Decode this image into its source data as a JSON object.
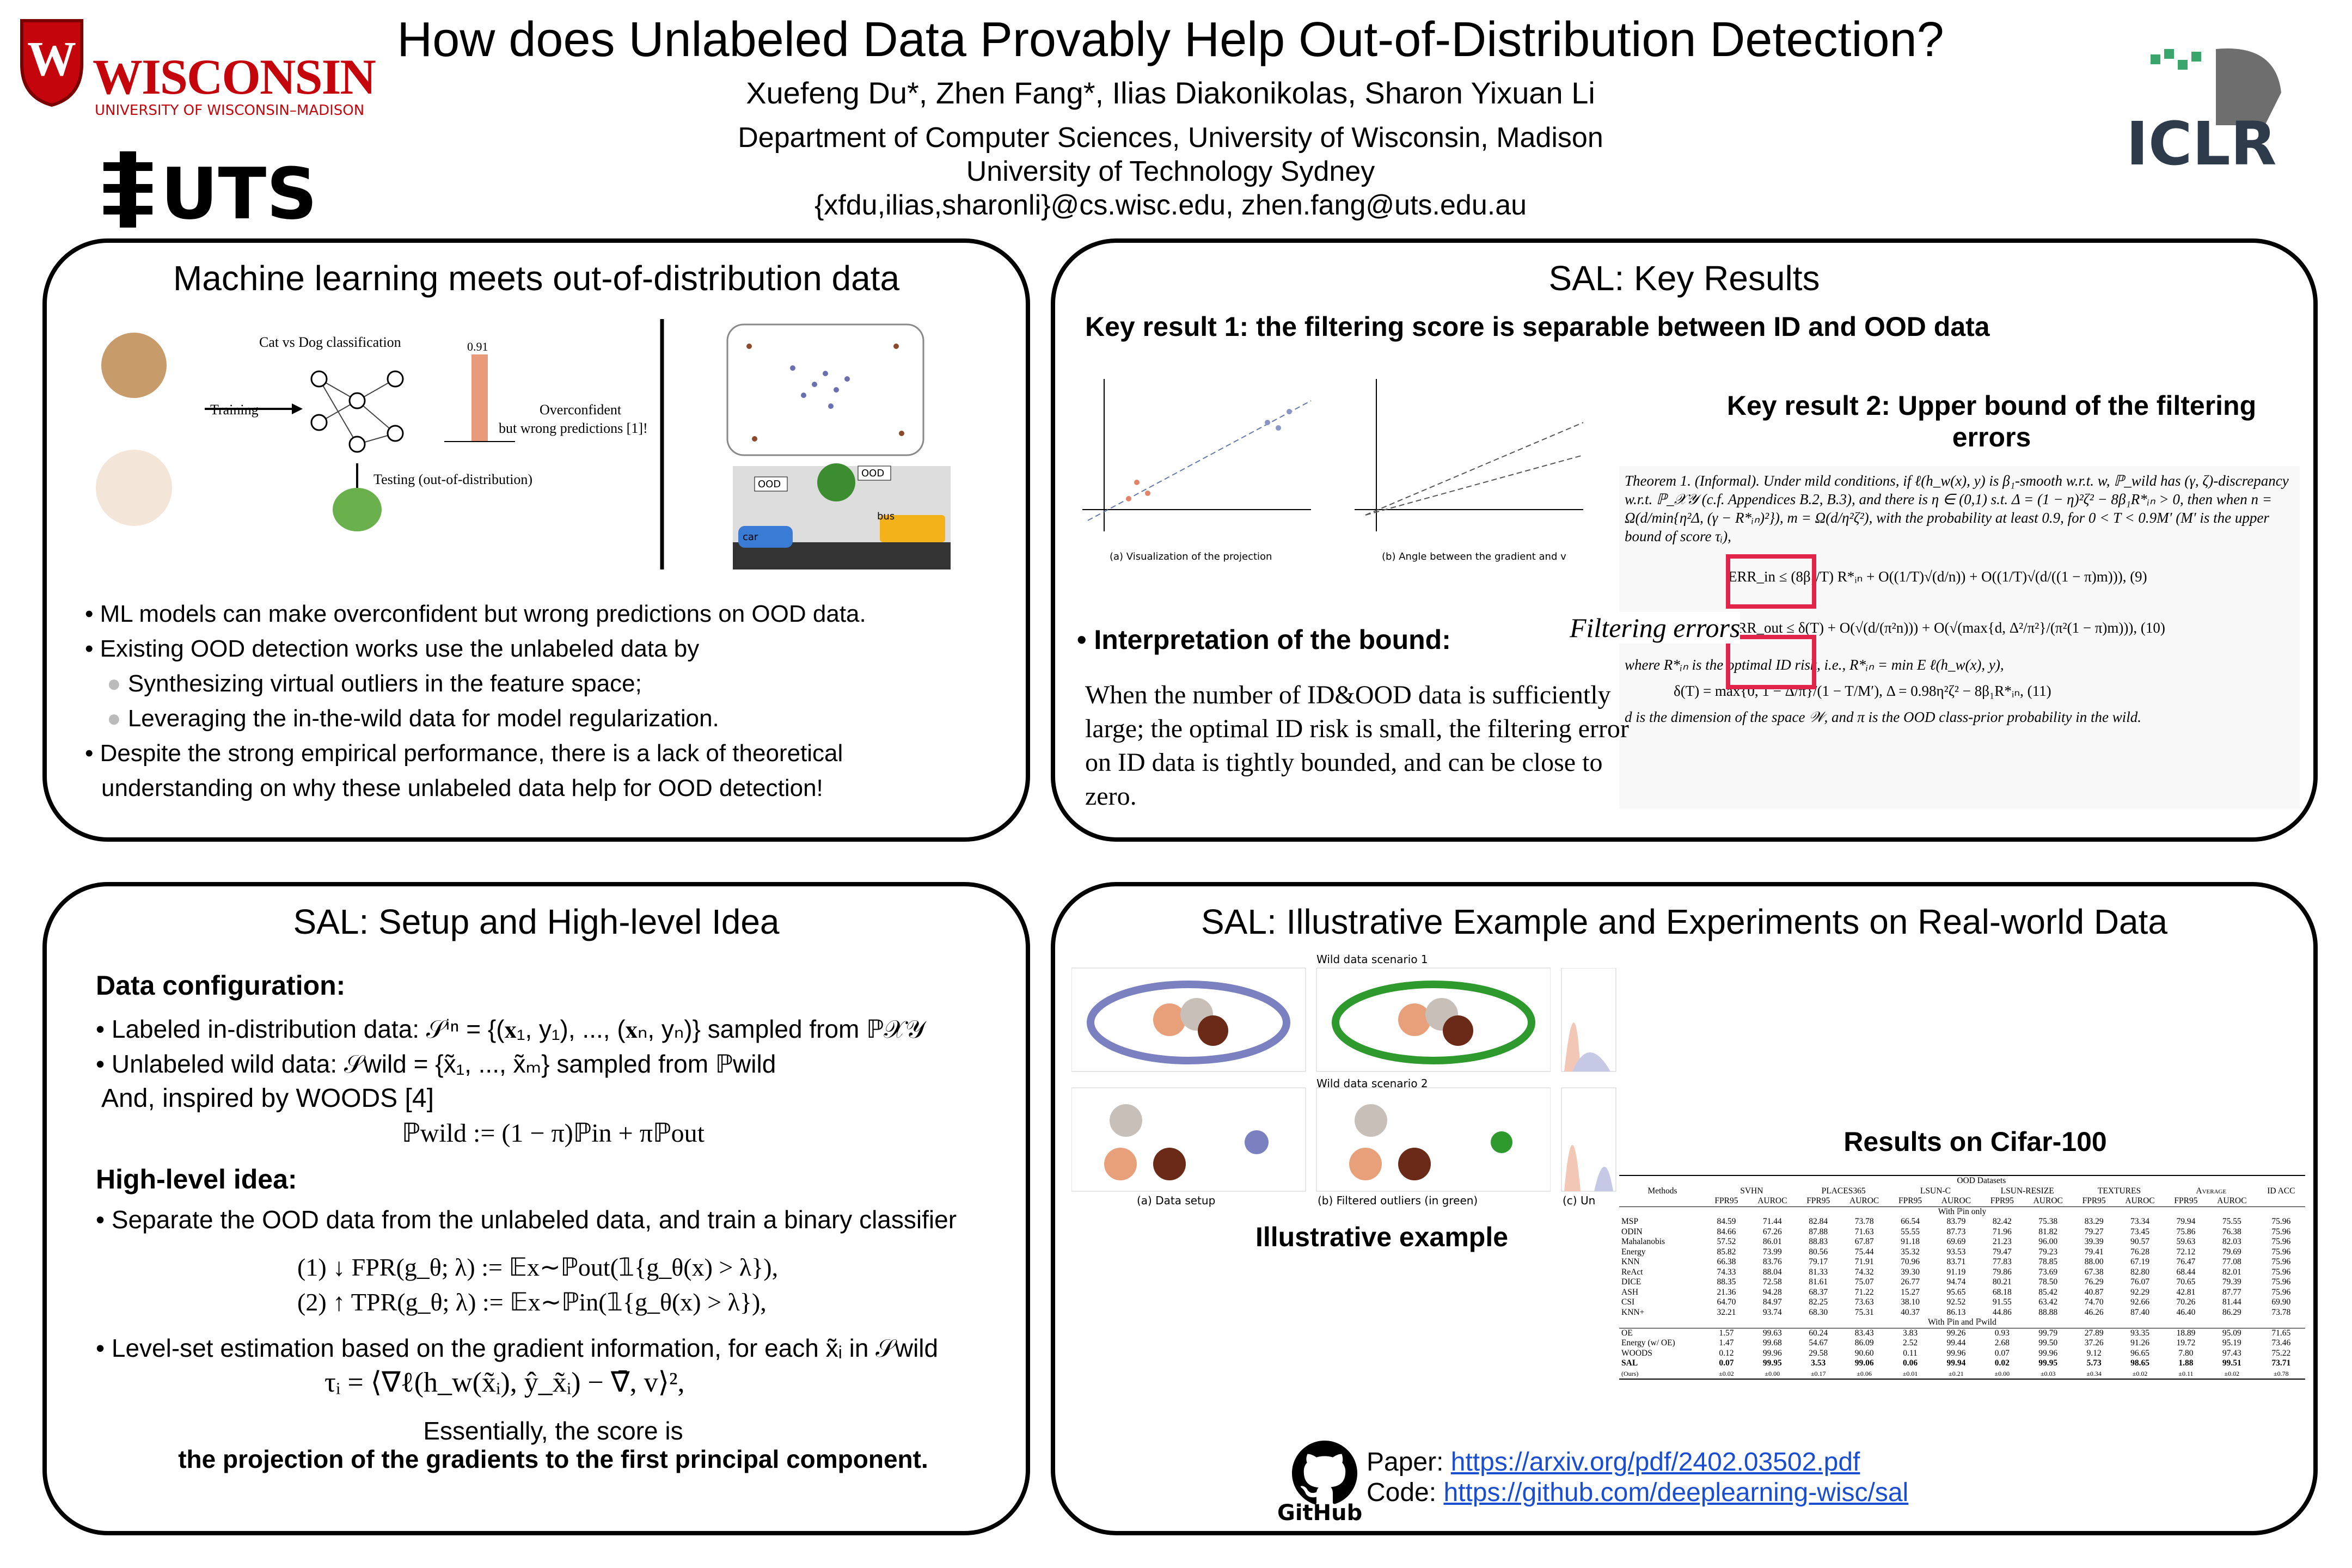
{
  "header": {
    "title": "How does Unlabeled Data Provably Help Out-of-Distribution Detection?",
    "authors": "Xuefeng Du*, Zhen Fang*, Ilias Diakonikolas, Sharon Yixuan Li",
    "affiliations": [
      "Department of Computer Sciences, University of Wisconsin, Madison",
      "University of Technology Sydney",
      "{xfdu,ilias,sharonli}@cs.wisc.edu, zhen.fang@uts.edu.au"
    ],
    "logos": {
      "wisconsin": "WISCONSIN",
      "wisconsin_sub": "UNIVERSITY OF WISCONSIN–MADISON",
      "uts": "UTS",
      "iclr": "ICLR"
    }
  },
  "motivation": {
    "title": "Machine learning meets out-of-distribution data",
    "figure": {
      "task": "Cat vs Dog classification",
      "training": "Training",
      "testing": "Testing (out-of-distribution)",
      "prob": "0.91",
      "overconfident": "Overconfident",
      "wrong": "but wrong predictions [1]!",
      "ood_1": "OOD",
      "ood_2": "OOD",
      "car": "car",
      "bus": "bus"
    },
    "bullets": [
      "ML models can make overconfident but wrong predictions on OOD data.",
      "Existing OOD detection works use the unlabeled data by",
      "Despite the strong empirical performance, there is a lack of theoretical understanding on why these unlabeled data help for OOD detection!"
    ],
    "sub_bullets": [
      "Synthesizing virtual outliers in the feature space;",
      "Leveraging the in-the-wild data for model regularization."
    ]
  },
  "results": {
    "title": "SAL: Key Results",
    "key_result_1": "Key result 1: the filtering score is separable between ID and OOD data",
    "key_result_2": "Key result 2: Upper bound of the filtering errors",
    "fig_captions": [
      "(a)   Visualization of the projection",
      "(b)   Angle between the gradient and v"
    ],
    "theorem": [
      "Theorem 1. (Informal). Under mild conditions, if ℓ(h_w(x), y) is β₁-smooth w.r.t. w, ℙ_wild has (γ, ζ)-discrepancy w.r.t. ℙ_𝒳𝒴 (c.f. Appendices B.2, B.3), and there is η ∈ (0,1) s.t. Δ = (1 − η)²ζ² − 8β₁R*ᵢₙ > 0, then when n = Ω(d/min{η²Δ, (γ − R*ᵢₙ)²}), m = Ω(d/η²ζ²), with the probability at least 0.9, for 0 < T < 0.9M′ (M′ is the upper bound of score τᵢ),",
      "ERR_in ≤ (8β₁/T) R*ᵢₙ + O((1/T)√(d/n)) + O((1/T)√(d/((1 − π)m))),   (9)",
      "ERR_out ≤ δ(T) + O(√(d/(π²n))) + O(√(max{d, Δ²/π²}/(π²(1 − π)m))),   (10)",
      "where R*ᵢₙ is the optimal ID risk, i.e., R*ᵢₙ = min E ℓ(h_w(x), y),",
      "δ(T) = max{0, 1 − Δ/π}/(1 − T/M′),  Δ = 0.98η²ζ² − 8β₁R*ᵢₙ,   (11)",
      "d is the dimension of the space 𝒲, and π is the OOD class-prior probability in the wild."
    ],
    "filtering_errors": "Filtering errors",
    "interpretation_heading": "Interpretation of the bound:",
    "interpretation": "When the number of ID&OOD data is sufficiently large; the optimal ID risk is small, the filtering error on ID data is tightly bounded, and can be close to zero."
  },
  "setup": {
    "title": "SAL: Setup and High-level Idea",
    "data_config": "Data configuration:",
    "labeled": "Labeled in-distribution data: 𝒮ⁱⁿ = {(𝐱₁, y₁), ..., (𝐱ₙ, yₙ)} sampled from ℙ𝒳𝒴",
    "unlabeled": "Unlabeled wild data: 𝒮wild = {x̃₁, ..., x̃ₘ} sampled from ℙwild",
    "inspired": "And, inspired by WOODS [4]",
    "mixture": "ℙwild := (1 − π)ℙin + πℙout",
    "high_level": "High-level idea:",
    "idea_1": "Separate the OOD data from the unlabeled data, and train a binary classifier",
    "fpr": "(1) ↓ FPR(g_θ; λ) := 𝔼x∼ℙout(𝟙{g_θ(x) > λ}),",
    "tpr": "(2) ↑ TPR(g_θ; λ) := 𝔼x∼ℙin(𝟙{g_θ(x) > λ}),",
    "idea_2": "Level-set estimation based on the gradient information, for each x̃ᵢ in 𝒮wild",
    "score": "τᵢ = ⟨∇ℓ(h_w(x̃ᵢ), ŷ_x̃ᵢ) − ∇̄, v⟩²,",
    "essentially": "Essentially, the score is",
    "projection": "the projection of the gradients to the first principal component."
  },
  "experiments": {
    "title": "SAL: Illustrative Example and Experiments on Real-world Data",
    "scenario_1": "Wild data scenario 1",
    "scenario_2": "Wild data scenario 2",
    "fig_captions": [
      "(a)   Data setup",
      "(b)   Filtered outliers (in green)",
      "(c)   Un"
    ],
    "illustrative": "Illustrative example",
    "table_title": "Results on Cifar-100",
    "table": {
      "group": "OOD Datasets",
      "methods": "Methods",
      "datasets": [
        "SVHN",
        "PLACES365",
        "LSUN-C",
        "LSUN-RESIZE",
        "TEXTURES",
        "Average"
      ],
      "id_acc": "ID ACC",
      "fpr": "FPR95",
      "auroc": "AUROC",
      "section_1": "With ℙin only",
      "section_2": "With ℙin and ℙwild",
      "rows_1": [
        [
          "MSP",
          "84.59",
          "71.44",
          "82.84",
          "73.78",
          "66.54",
          "83.79",
          "82.42",
          "75.38",
          "83.29",
          "73.34",
          "79.94",
          "75.55",
          "75.96"
        ],
        [
          "ODIN",
          "84.66",
          "67.26",
          "87.88",
          "71.63",
          "55.55",
          "87.73",
          "71.96",
          "81.82",
          "79.27",
          "73.45",
          "75.86",
          "76.38",
          "75.96"
        ],
        [
          "Mahalanobis",
          "57.52",
          "86.01",
          "88.83",
          "67.87",
          "91.18",
          "69.69",
          "21.23",
          "96.00",
          "39.39",
          "90.57",
          "59.63",
          "82.03",
          "75.96"
        ],
        [
          "Energy",
          "85.82",
          "73.99",
          "80.56",
          "75.44",
          "35.32",
          "93.53",
          "79.47",
          "79.23",
          "79.41",
          "76.28",
          "72.12",
          "79.69",
          "75.96"
        ],
        [
          "KNN",
          "66.38",
          "83.76",
          "79.17",
          "71.91",
          "70.96",
          "83.71",
          "77.83",
          "78.85",
          "88.00",
          "67.19",
          "76.47",
          "77.08",
          "75.96"
        ],
        [
          "ReAct",
          "74.33",
          "88.04",
          "81.33",
          "74.32",
          "39.30",
          "91.19",
          "79.86",
          "73.69",
          "67.38",
          "82.80",
          "68.44",
          "82.01",
          "75.96"
        ],
        [
          "DICE",
          "88.35",
          "72.58",
          "81.61",
          "75.07",
          "26.77",
          "94.74",
          "80.21",
          "78.50",
          "76.29",
          "76.07",
          "70.65",
          "79.39",
          "75.96"
        ],
        [
          "ASH",
          "21.36",
          "94.28",
          "68.37",
          "71.22",
          "15.27",
          "95.65",
          "68.18",
          "85.42",
          "40.87",
          "92.29",
          "42.81",
          "87.77",
          "75.96"
        ],
        [
          "CSI",
          "64.70",
          "84.97",
          "82.25",
          "73.63",
          "38.10",
          "92.52",
          "91.55",
          "63.42",
          "74.70",
          "92.66",
          "70.26",
          "81.44",
          "69.90"
        ],
        [
          "KNN+",
          "32.21",
          "93.74",
          "68.30",
          "75.31",
          "40.37",
          "86.13",
          "44.86",
          "88.88",
          "46.26",
          "87.40",
          "46.40",
          "86.29",
          "73.78"
        ]
      ],
      "rows_2": [
        [
          "OE",
          "1.57",
          "99.63",
          "60.24",
          "83.43",
          "3.83",
          "99.26",
          "0.93",
          "99.79",
          "27.89",
          "93.35",
          "18.89",
          "95.09",
          "71.65"
        ],
        [
          "Energy (w/ OE)",
          "1.47",
          "99.68",
          "54.67",
          "86.09",
          "2.52",
          "99.44",
          "2.68",
          "99.50",
          "37.26",
          "91.26",
          "19.72",
          "95.19",
          "73.46"
        ],
        [
          "WOODS",
          "0.12",
          "99.96",
          "29.58",
          "90.60",
          "0.11",
          "99.96",
          "0.07",
          "99.96",
          "9.12",
          "96.65",
          "7.80",
          "97.43",
          "75.22"
        ],
        [
          "SAL",
          "0.07",
          "99.95",
          "3.53",
          "99.06",
          "0.06",
          "99.94",
          "0.02",
          "99.95",
          "5.73",
          "98.65",
          "1.88",
          "99.51",
          "73.71"
        ],
        [
          "(Ours)",
          "±0.02",
          "±0.00",
          "±0.17",
          "±0.06",
          "±0.01",
          "±0.21",
          "±0.00",
          "±0.03",
          "±0.34",
          "±0.02",
          "±0.11",
          "±0.02",
          "±0.78"
        ]
      ]
    },
    "github": "GitHub",
    "paper_label": "Paper:",
    "paper_url": "https://arxiv.org/pdf/2402.03502.pdf",
    "code_label": "Code:",
    "code_url": "https://github.com/deeplearning-wisc/sal"
  }
}
